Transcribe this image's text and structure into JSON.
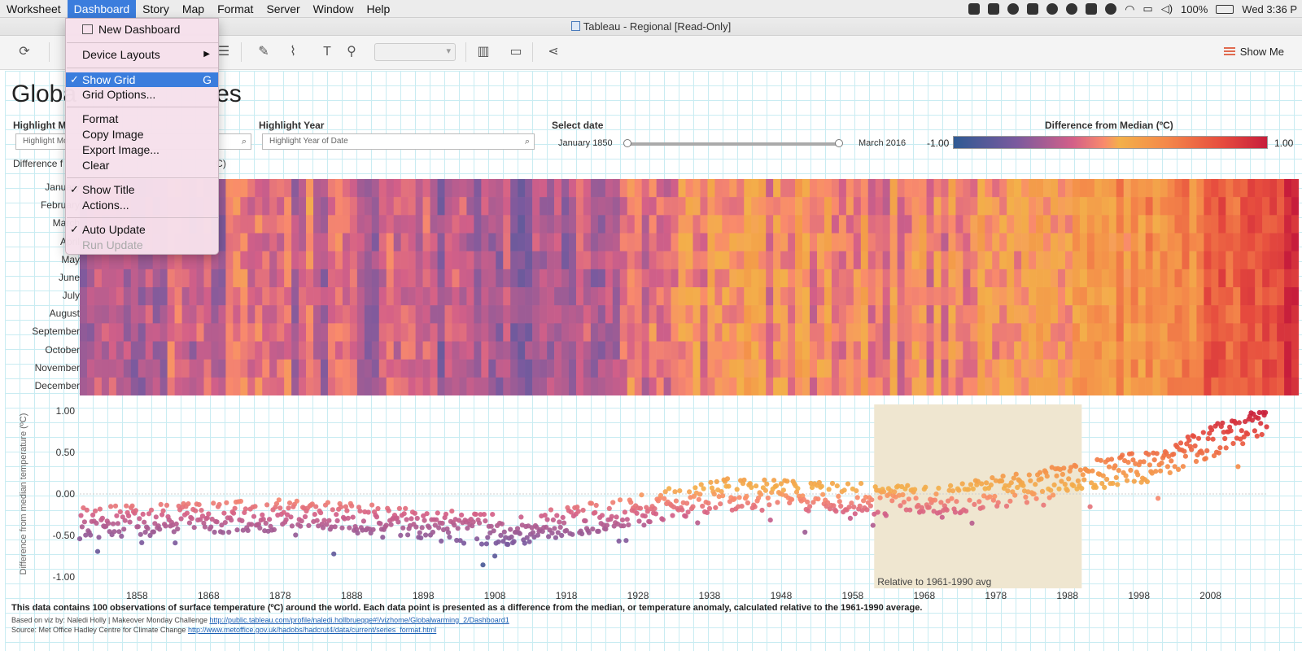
{
  "menubar": {
    "items": [
      "Worksheet",
      "Dashboard",
      "Story",
      "Map",
      "Format",
      "Server",
      "Window",
      "Help"
    ],
    "battery": "100%",
    "clock": "Wed 3:36 P"
  },
  "window": {
    "title": "Tableau - Regional [Read-Only]"
  },
  "toolbar": {
    "show_me": "Show Me"
  },
  "dashboard_menu": {
    "new_dashboard": "New Dashboard",
    "device_layouts": "Device Layouts",
    "show_grid": "Show Grid",
    "show_grid_shortcut": "G",
    "grid_options": "Grid Options...",
    "format": "Format",
    "copy_image": "Copy Image",
    "export_image": "Export Image...",
    "clear": "Clear",
    "show_title": "Show Title",
    "actions": "Actions...",
    "auto_update": "Auto Update",
    "run_update": "Run Update"
  },
  "dashboard": {
    "title_left": "Globa",
    "title_right": "es",
    "filters": {
      "highlight_month_label": "Highlight M",
      "highlight_month_placeholder": "Highlight Mo",
      "highlight_year_label": "Highlight Year",
      "highlight_year_placeholder": "Highlight Year of Date",
      "select_date_label": "Select date",
      "date_min": "January 1850",
      "date_max": "March 2016"
    },
    "legend": {
      "title": "Difference from Median (ºC)",
      "min": "-1.00",
      "max": "1.00"
    },
    "heatmap_subtitle_left": "Difference f",
    "heatmap_subtitle_right": "C)",
    "footer": {
      "main": "This data contains 100 observations of surface temperature (ºC) around the world. Each data point is presented as a difference from the median, or temperature anomaly, calculated relative to the 1961-1990 average.",
      "credit_prefix": "Based on viz by: Naledi Holly | Makeover Monday Challenge",
      "credit_link": "http://public.tableau.com/profile/naledi.hollbrueqqe#!/vizhome/Globalwarming_2/Dashboard1",
      "source_prefix": "Source: Met Office Hadley Centre for Climate Change",
      "source_link": "http://www.metoffice.gov.uk/hadobs/hadcrut4/data/current/series_format.html"
    }
  },
  "colors": {
    "neg": "#2f5a93",
    "mid": "#f3b04a",
    "pos": "#c71d3b",
    "band": "#efe6d0"
  },
  "chart_data": [
    {
      "type": "heatmap",
      "title": "",
      "y_categories": [
        "January",
        "February",
        "March",
        "April",
        "May",
        "June",
        "July",
        "August",
        "September",
        "October",
        "November",
        "December"
      ],
      "x_range": [
        1850,
        2016
      ],
      "trend_anchor_years": [
        1850,
        1880,
        1910,
        1940,
        1970,
        2000,
        2016
      ],
      "trend_anchor_values": [
        -0.35,
        -0.25,
        -0.45,
        0.0,
        -0.1,
        0.35,
        0.9
      ],
      "color_scale": [
        -1.0,
        1.0
      ]
    },
    {
      "type": "scatter",
      "ylabel": "Difference from median temperature (ºC)",
      "y_ticks": [
        "1.00",
        "0.50",
        "0.00",
        "-0.50",
        "-1.00"
      ],
      "ylim": [
        -1.0,
        1.0
      ],
      "x_ticks": [
        "1858",
        "1868",
        "1878",
        "1888",
        "1898",
        "1908",
        "1918",
        "1928",
        "1938",
        "1948",
        "1958",
        "1968",
        "1978",
        "1988",
        "1998",
        "2008"
      ],
      "xlim": [
        1850,
        2016
      ],
      "band": {
        "from": 1961,
        "to": 1990,
        "label": "Relative to 1961-1990 avg"
      },
      "trend_anchor_years": [
        1850,
        1880,
        1910,
        1940,
        1970,
        2000,
        2016
      ],
      "trend_anchor_values": [
        -0.35,
        -0.25,
        -0.45,
        0.0,
        -0.1,
        0.35,
        0.9
      ]
    }
  ]
}
